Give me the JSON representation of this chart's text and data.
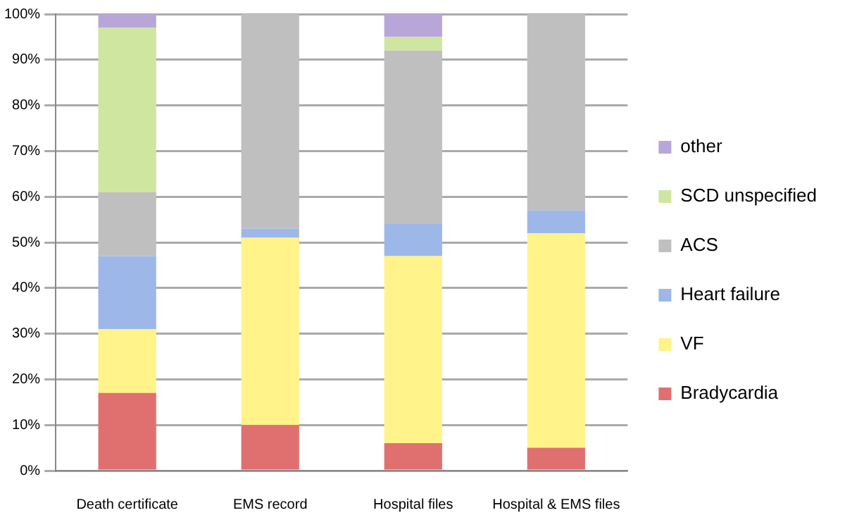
{
  "chart_data": {
    "type": "bar",
    "stacked": true,
    "categories": [
      "Death certificate",
      "EMS record",
      "Hospital files",
      "Hospital & EMS files"
    ],
    "series": [
      {
        "name": "Bradycardia",
        "color": "#e07070",
        "values": [
          17,
          10,
          6,
          5
        ]
      },
      {
        "name": "VF",
        "color": "#fff38a",
        "values": [
          14,
          41,
          41,
          47
        ]
      },
      {
        "name": "Heart failure",
        "color": "#9db8e8",
        "values": [
          16,
          2,
          7,
          5
        ]
      },
      {
        "name": "ACS",
        "color": "#bfbfbf",
        "values": [
          14,
          47,
          38,
          43
        ]
      },
      {
        "name": "SCD unspecified",
        "color": "#cfe6a0",
        "values": [
          36,
          0,
          3,
          0
        ]
      },
      {
        "name": "other",
        "color": "#b8a6d9",
        "values": [
          3,
          0,
          5,
          0
        ]
      }
    ],
    "ylim": [
      0,
      100
    ],
    "yticks": [
      {
        "value": 0,
        "label": "0%"
      },
      {
        "value": 10,
        "label": "10%"
      },
      {
        "value": 20,
        "label": "20%"
      },
      {
        "value": 30,
        "label": "30%"
      },
      {
        "value": 40,
        "label": "40%"
      },
      {
        "value": 50,
        "label": "50%"
      },
      {
        "value": 60,
        "label": "60%"
      },
      {
        "value": 70,
        "label": "70%"
      },
      {
        "value": 80,
        "label": "80%"
      },
      {
        "value": 90,
        "label": "90%"
      },
      {
        "value": 100,
        "label": "100%"
      }
    ],
    "grid": "y",
    "legend": "right"
  }
}
